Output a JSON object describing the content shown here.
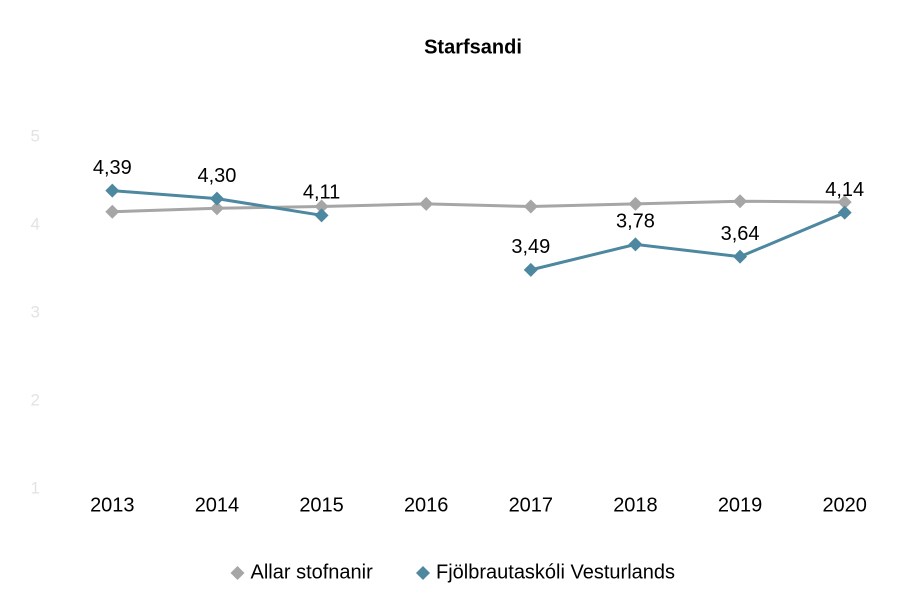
{
  "chart_data": {
    "type": "line",
    "title": "Starfsandi",
    "categories": [
      "2013",
      "2014",
      "2015",
      "2016",
      "2017",
      "2018",
      "2019",
      "2020"
    ],
    "series": [
      {
        "name": "Allar stofnanir",
        "color": "#a6a6a6",
        "values": [
          4.15,
          4.19,
          4.21,
          4.24,
          4.21,
          4.24,
          4.27,
          4.26
        ]
      },
      {
        "name": "Fjölbrautaskóli Vesturlands",
        "color": "#4e87a0",
        "values": [
          4.39,
          4.3,
          4.11,
          null,
          3.49,
          3.78,
          3.64,
          4.14
        ],
        "value_labels": [
          "4,39",
          "4,30",
          "4,11",
          null,
          "3,49",
          "3,78",
          "3,64",
          "4,14"
        ]
      }
    ],
    "ylim": [
      1,
      5
    ],
    "yticks": [
      1,
      2,
      3,
      4,
      5
    ],
    "grid": false,
    "legend": "bottom"
  }
}
